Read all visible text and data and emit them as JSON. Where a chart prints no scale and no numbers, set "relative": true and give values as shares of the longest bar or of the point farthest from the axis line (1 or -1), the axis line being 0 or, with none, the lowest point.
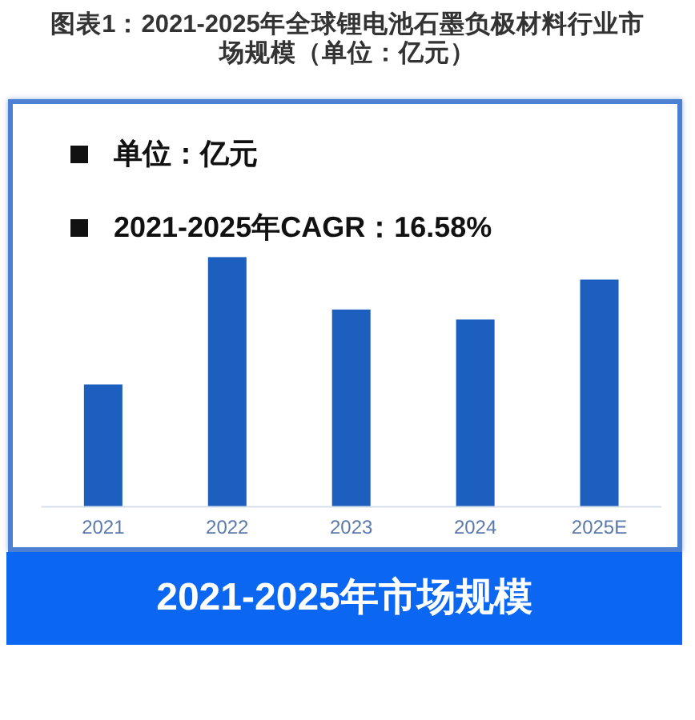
{
  "chart_data": {
    "type": "bar",
    "relative": true,
    "title": "图表1：2021-2025年全球锂电池石墨负极材料行业市场规模（单位：亿元）",
    "xlabel": "2021-2025年市场规模",
    "annotations": [
      "单位：亿元",
      "2021-2025年CAGR：16.58%"
    ],
    "categories": [
      "2021",
      "2022",
      "2023",
      "2024",
      "2025E"
    ],
    "values": [
      0.49,
      1,
      0.79,
      0.75,
      0.91
    ],
    "color": "#1d5fbe"
  }
}
